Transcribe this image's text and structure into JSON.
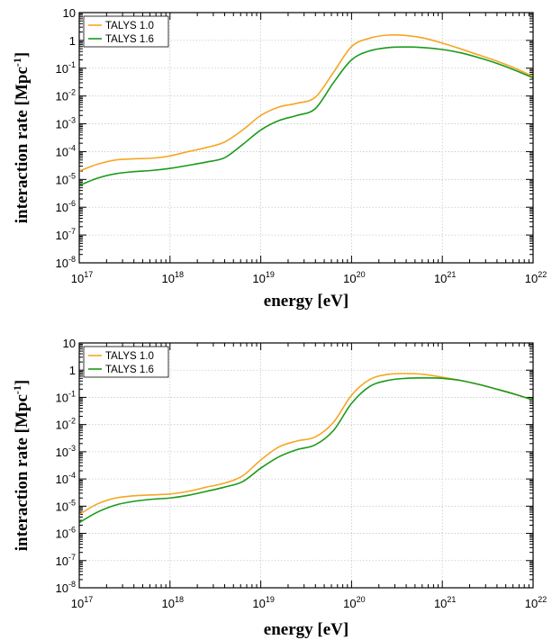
{
  "legend_position": "top-left",
  "colors": {
    "TALYS 1.0": "#f5a623",
    "TALYS 1.6": "#1a9a1a"
  },
  "chart_data": [
    {
      "type": "line",
      "xlabel": "energy [eV]",
      "ylabel_base": "interaction rate [Mpc",
      "ylabel_sup": "-1",
      "ylabel_end": "]",
      "xscale": "log",
      "yscale": "log",
      "xlim": [
        1e+17,
        1e+22
      ],
      "ylim": [
        1e-08,
        10
      ],
      "grid": true,
      "x_tick_labels": [
        {
          "base": "10",
          "exp": "17"
        },
        {
          "base": "10",
          "exp": "18"
        },
        {
          "base": "10",
          "exp": "19"
        },
        {
          "base": "10",
          "exp": "20"
        },
        {
          "base": "10",
          "exp": "21"
        },
        {
          "base": "10",
          "exp": "22"
        }
      ],
      "y_tick_labels": [
        {
          "base": "10",
          "exp": "-8"
        },
        {
          "base": "10",
          "exp": "-7"
        },
        {
          "base": "10",
          "exp": "-6"
        },
        {
          "base": "10",
          "exp": "-5"
        },
        {
          "base": "10",
          "exp": "-4"
        },
        {
          "base": "10",
          "exp": "-3"
        },
        {
          "base": "10",
          "exp": "-2"
        },
        {
          "base": "10",
          "exp": "-1"
        },
        {
          "base": "1",
          "exp": ""
        },
        {
          "base": "10",
          "exp": ""
        }
      ],
      "series": [
        {
          "name": "TALYS 1.0",
          "x": [
            1e+17,
            1.58e+17,
            2.51e+17,
            3.98e+17,
            6.31e+17,
            1e+18,
            1.58e+18,
            2.51e+18,
            3.98e+18,
            6.31e+18,
            1e+19,
            1.58e+19,
            2.51e+19,
            3.98e+19,
            6.31e+19,
            1e+20,
            1.58e+20,
            2.51e+20,
            3.98e+20,
            6.31e+20,
            1e+21,
            1.58e+21,
            2.51e+21,
            3.98e+21,
            6.31e+21,
            1e+22
          ],
          "y": [
            2e-05,
            3.5e-05,
            5e-05,
            5.5e-05,
            5.8e-05,
            7e-05,
            0.0001,
            0.00014,
            0.00022,
            0.0006,
            0.002,
            0.004,
            0.0055,
            0.009,
            0.07,
            0.6,
            1.2,
            1.55,
            1.5,
            1.2,
            0.8,
            0.5,
            0.3,
            0.18,
            0.1,
            0.05
          ]
        },
        {
          "name": "TALYS 1.6",
          "x": [
            1e+17,
            1.58e+17,
            2.51e+17,
            3.98e+17,
            6.31e+17,
            1e+18,
            1.58e+18,
            2.51e+18,
            3.98e+18,
            6.31e+18,
            1e+19,
            1.58e+19,
            2.51e+19,
            3.98e+19,
            6.31e+19,
            1e+20,
            1.58e+20,
            2.51e+20,
            3.98e+20,
            6.31e+20,
            1e+21,
            1.58e+21,
            2.51e+21,
            3.98e+21,
            6.31e+21,
            1e+22
          ],
          "y": [
            6e-06,
            1.1e-05,
            1.6e-05,
            1.9e-05,
            2.1e-05,
            2.5e-05,
            3.2e-05,
            4.2e-05,
            6e-05,
            0.00018,
            0.0006,
            0.0013,
            0.002,
            0.0035,
            0.03,
            0.2,
            0.42,
            0.55,
            0.58,
            0.55,
            0.47,
            0.36,
            0.24,
            0.15,
            0.085,
            0.045
          ]
        }
      ]
    },
    {
      "type": "line",
      "xlabel": "energy [eV]",
      "ylabel_base": "interaction rate [Mpc",
      "ylabel_sup": "-1",
      "ylabel_end": "]",
      "xscale": "log",
      "yscale": "log",
      "xlim": [
        1e+17,
        1e+22
      ],
      "ylim": [
        1e-08,
        10
      ],
      "grid": true,
      "x_tick_labels": [
        {
          "base": "10",
          "exp": "17"
        },
        {
          "base": "10",
          "exp": "18"
        },
        {
          "base": "10",
          "exp": "19"
        },
        {
          "base": "10",
          "exp": "20"
        },
        {
          "base": "10",
          "exp": "21"
        },
        {
          "base": "10",
          "exp": "22"
        }
      ],
      "y_tick_labels": [
        {
          "base": "10",
          "exp": "-8"
        },
        {
          "base": "10",
          "exp": "-7"
        },
        {
          "base": "10",
          "exp": "-6"
        },
        {
          "base": "10",
          "exp": "-5"
        },
        {
          "base": "10",
          "exp": "-4"
        },
        {
          "base": "10",
          "exp": "-3"
        },
        {
          "base": "10",
          "exp": "-2"
        },
        {
          "base": "10",
          "exp": "-1"
        },
        {
          "base": "1",
          "exp": ""
        },
        {
          "base": "10",
          "exp": ""
        }
      ],
      "series": [
        {
          "name": "TALYS 1.0",
          "x": [
            1e+17,
            1.58e+17,
            2.51e+17,
            3.98e+17,
            6.31e+17,
            1e+18,
            1.58e+18,
            2.51e+18,
            3.98e+18,
            6.31e+18,
            1e+19,
            1.58e+19,
            2.51e+19,
            3.98e+19,
            6.31e+19,
            1e+20,
            1.58e+20,
            2.51e+20,
            3.98e+20,
            6.31e+20,
            1e+21,
            1.58e+21,
            2.51e+21,
            3.98e+21,
            6.31e+21,
            1e+22
          ],
          "y": [
            5e-06,
            1.2e-05,
            2e-05,
            2.4e-05,
            2.6e-05,
            2.8e-05,
            3.5e-05,
            5e-05,
            7e-05,
            0.00013,
            0.0005,
            0.0015,
            0.0025,
            0.0035,
            0.012,
            0.12,
            0.45,
            0.7,
            0.75,
            0.7,
            0.55,
            0.42,
            0.3,
            0.2,
            0.13,
            0.08
          ]
        },
        {
          "name": "TALYS 1.6",
          "x": [
            1e+17,
            1.58e+17,
            2.51e+17,
            3.98e+17,
            6.31e+17,
            1e+18,
            1.58e+18,
            2.51e+18,
            3.98e+18,
            6.31e+18,
            1e+19,
            1.58e+19,
            2.51e+19,
            3.98e+19,
            6.31e+19,
            1e+20,
            1.58e+20,
            2.51e+20,
            3.98e+20,
            6.31e+20,
            1e+21,
            1.58e+21,
            2.51e+21,
            3.98e+21,
            6.31e+21,
            1e+22
          ],
          "y": [
            2.5e-06,
            6e-06,
            1.1e-05,
            1.5e-05,
            1.8e-05,
            2e-05,
            2.5e-05,
            3.5e-05,
            5e-05,
            8e-05,
            0.00025,
            0.00065,
            0.0012,
            0.0018,
            0.006,
            0.06,
            0.25,
            0.42,
            0.5,
            0.52,
            0.5,
            0.42,
            0.3,
            0.2,
            0.13,
            0.08
          ]
        }
      ]
    }
  ]
}
